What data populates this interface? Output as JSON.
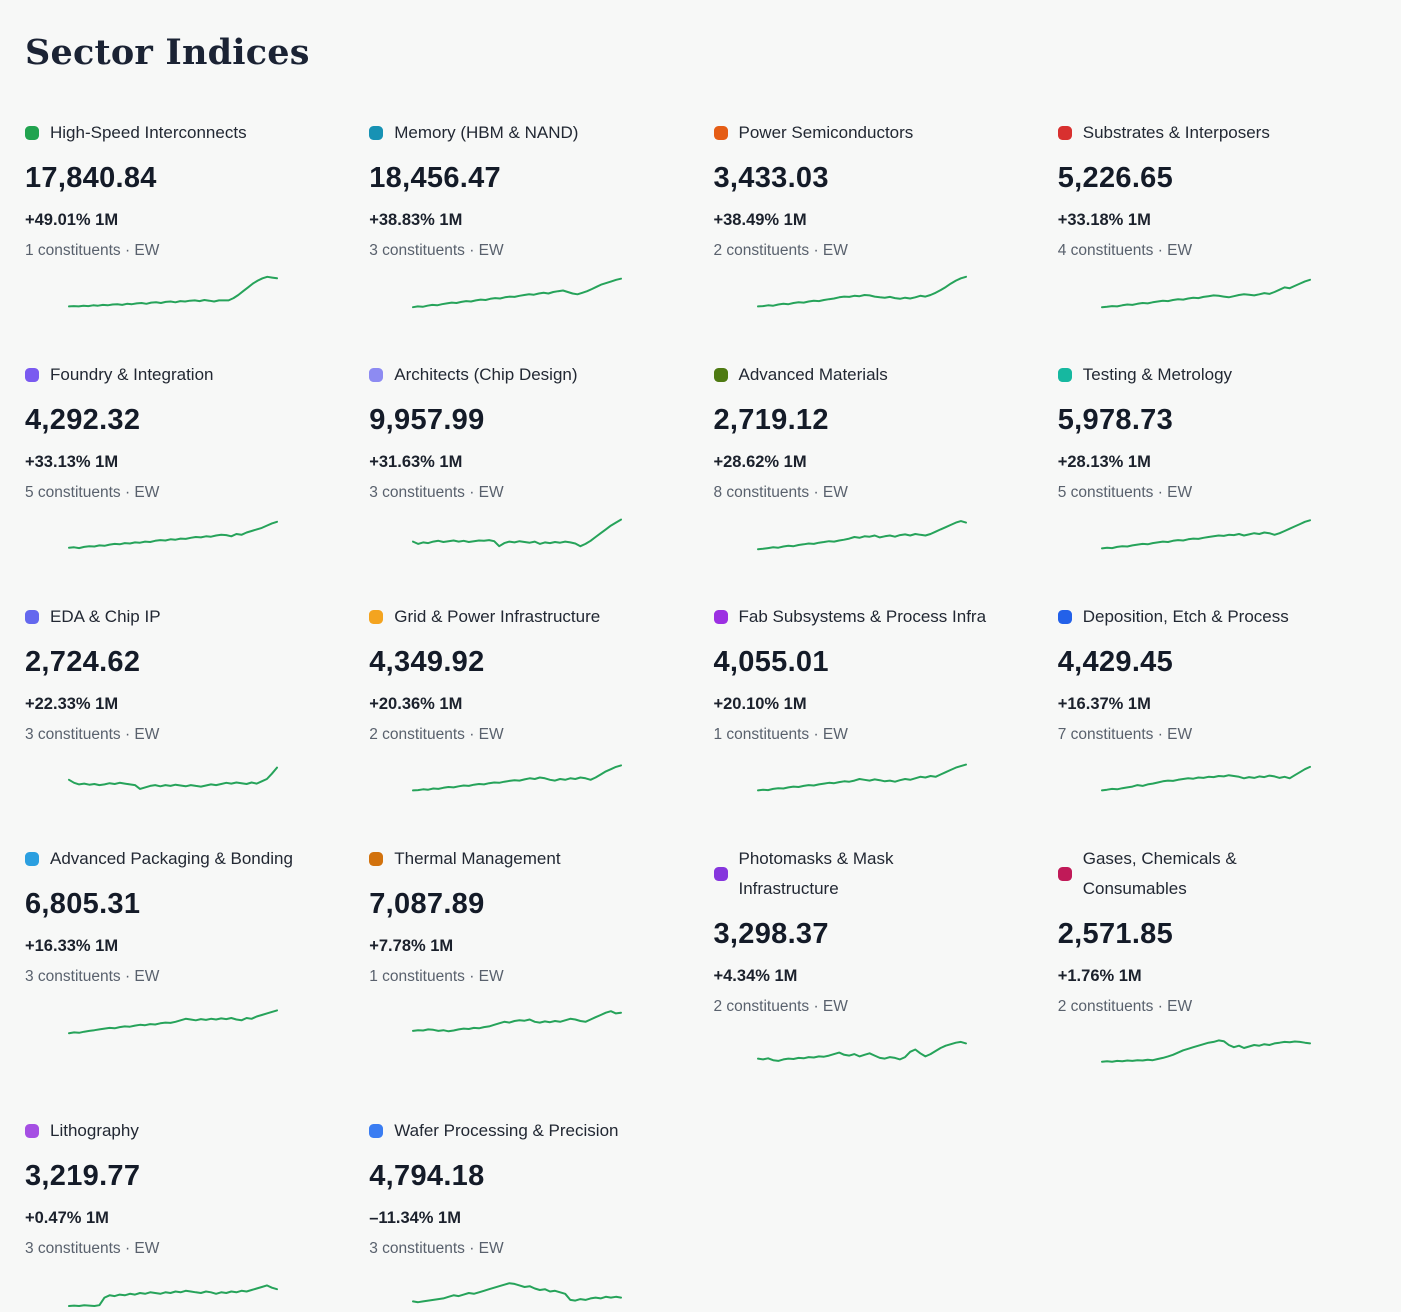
{
  "page": {
    "title": "Sector Indices",
    "background_color": "#f7f8f7",
    "sparkline_color": "#26a35a"
  },
  "cards": [
    {
      "name": "High-Speed Interconnects",
      "dot_color": "#21a34f",
      "value": "17,840.84",
      "change": "+49.01% 1M",
      "constituents": "1 constituents · EW",
      "spark": [
        12,
        13,
        12,
        14,
        13,
        15,
        14,
        16,
        15,
        17,
        18,
        16,
        19,
        18,
        20,
        21,
        19,
        22,
        23,
        21,
        24,
        25,
        23,
        26,
        25,
        27,
        28,
        26,
        29,
        27,
        25,
        28,
        28,
        28,
        34,
        42,
        52,
        62,
        72,
        80,
        86,
        90,
        88,
        86
      ]
    },
    {
      "name": "Memory (HBM & NAND)",
      "dot_color": "#1792b4",
      "value": "18,456.47",
      "change": "+38.83% 1M",
      "constituents": "3 constituents · EW",
      "spark": [
        10,
        12,
        11,
        14,
        16,
        15,
        18,
        20,
        22,
        21,
        24,
        26,
        25,
        28,
        30,
        29,
        32,
        34,
        33,
        36,
        38,
        37,
        40,
        42,
        44,
        43,
        46,
        48,
        46,
        50,
        52,
        54,
        50,
        46,
        44,
        48,
        52,
        58,
        64,
        70,
        74,
        78,
        82,
        85
      ]
    },
    {
      "name": "Power Semiconductors",
      "dot_color": "#e55d15",
      "value": "3,433.03",
      "change": "+38.49% 1M",
      "constituents": "2 constituents · EW",
      "spark": [
        12,
        13,
        15,
        14,
        17,
        19,
        18,
        21,
        23,
        22,
        25,
        27,
        26,
        29,
        31,
        33,
        36,
        38,
        37,
        40,
        39,
        42,
        41,
        38,
        36,
        35,
        37,
        34,
        32,
        35,
        33,
        36,
        40,
        38,
        42,
        48,
        55,
        63,
        72,
        80,
        86,
        90
      ]
    },
    {
      "name": "Substrates & Interposers",
      "dot_color": "#d8302f",
      "value": "5,226.65",
      "change": "+33.18% 1M",
      "constituents": "4 constituents · EW",
      "spark": [
        10,
        11,
        13,
        12,
        15,
        17,
        16,
        19,
        21,
        20,
        23,
        25,
        27,
        26,
        29,
        31,
        30,
        33,
        35,
        34,
        37,
        39,
        41,
        40,
        38,
        36,
        39,
        42,
        44,
        43,
        41,
        44,
        47,
        45,
        50,
        56,
        62,
        60,
        66,
        72,
        78,
        82
      ]
    },
    {
      "name": "Foundry & Integration",
      "dot_color": "#7a5af0",
      "value": "4,292.32",
      "change": "+33.13% 1M",
      "constituents": "5 constituents · EW",
      "spark": [
        14,
        15,
        13,
        16,
        18,
        17,
        20,
        19,
        22,
        24,
        23,
        26,
        25,
        28,
        27,
        30,
        29,
        32,
        34,
        33,
        36,
        35,
        38,
        37,
        40,
        42,
        41,
        44,
        43,
        46,
        48,
        47,
        44,
        50,
        48,
        54,
        58,
        62,
        66,
        72,
        78,
        82
      ]
    },
    {
      "name": "Architects (Chip Design)",
      "dot_color": "#8d8bf2",
      "value": "9,957.99",
      "change": "+31.63% 1M",
      "constituents": "3 constituents · EW",
      "spark": [
        30,
        24,
        28,
        26,
        30,
        32,
        29,
        31,
        33,
        30,
        32,
        29,
        31,
        33,
        32,
        34,
        31,
        18,
        26,
        30,
        28,
        31,
        29,
        27,
        30,
        24,
        28,
        26,
        29,
        27,
        30,
        28,
        25,
        18,
        24,
        32,
        42,
        52,
        62,
        72,
        80,
        88
      ]
    },
    {
      "name": "Advanced Materials",
      "dot_color": "#4e7a12",
      "value": "2,719.12",
      "change": "+28.62% 1M",
      "constituents": "8 constituents · EW",
      "spark": [
        10,
        11,
        13,
        15,
        14,
        17,
        19,
        18,
        21,
        23,
        25,
        24,
        27,
        29,
        31,
        30,
        33,
        35,
        38,
        42,
        40,
        44,
        43,
        46,
        41,
        44,
        46,
        43,
        47,
        49,
        46,
        50,
        48,
        46,
        50,
        56,
        62,
        68,
        74,
        80,
        84,
        80
      ]
    },
    {
      "name": "Testing & Metrology",
      "dot_color": "#16b8a0",
      "value": "5,978.73",
      "change": "+28.13% 1M",
      "constituents": "5 constituents · EW",
      "spark": [
        12,
        14,
        13,
        16,
        18,
        17,
        20,
        22,
        24,
        23,
        26,
        28,
        30,
        29,
        32,
        34,
        33,
        36,
        38,
        37,
        40,
        42,
        44,
        46,
        45,
        48,
        47,
        50,
        46,
        49,
        52,
        50,
        54,
        52,
        48,
        52,
        58,
        64,
        70,
        76,
        82,
        86
      ]
    },
    {
      "name": "EDA & Chip IP",
      "dot_color": "#6468ee",
      "value": "2,724.62",
      "change": "+22.33% 1M",
      "constituents": "3 constituents · EW",
      "spark": [
        40,
        32,
        28,
        30,
        27,
        29,
        26,
        28,
        31,
        29,
        32,
        30,
        28,
        26,
        16,
        20,
        24,
        26,
        23,
        26,
        24,
        27,
        25,
        23,
        26,
        24,
        22,
        25,
        28,
        26,
        29,
        32,
        30,
        33,
        31,
        29,
        33,
        30,
        36,
        42,
        56,
        72
      ]
    },
    {
      "name": "Grid & Power Infrastructure",
      "dot_color": "#f4a41f",
      "value": "4,349.92",
      "change": "+20.36% 1M",
      "constituents": "2 constituents · EW",
      "spark": [
        12,
        13,
        15,
        14,
        17,
        16,
        19,
        21,
        20,
        23,
        25,
        24,
        27,
        29,
        28,
        31,
        33,
        32,
        35,
        37,
        39,
        38,
        41,
        44,
        42,
        46,
        44,
        40,
        38,
        42,
        40,
        44,
        42,
        46,
        44,
        40,
        46,
        54,
        62,
        68,
        74,
        78
      ]
    },
    {
      "name": "Fab Subsystems & Process Infra",
      "dot_color": "#9c30e2",
      "value": "4,055.01",
      "change": "+20.10% 1M",
      "constituents": "1 constituents · EW",
      "spark": [
        12,
        14,
        13,
        16,
        18,
        17,
        20,
        22,
        21,
        24,
        26,
        25,
        28,
        30,
        32,
        31,
        34,
        36,
        35,
        38,
        42,
        40,
        38,
        41,
        39,
        36,
        38,
        35,
        39,
        42,
        40,
        44,
        48,
        46,
        50,
        48,
        54,
        60,
        66,
        72,
        76,
        80
      ]
    },
    {
      "name": "Deposition, Etch & Process",
      "dot_color": "#2361e9",
      "value": "4,429.45",
      "change": "+16.37% 1M",
      "constituents": "7 constituents · EW",
      "spark": [
        12,
        14,
        16,
        15,
        18,
        20,
        22,
        26,
        24,
        28,
        30,
        33,
        36,
        38,
        37,
        40,
        42,
        44,
        43,
        46,
        45,
        48,
        47,
        50,
        49,
        52,
        50,
        48,
        44,
        47,
        45,
        49,
        47,
        51,
        49,
        45,
        48,
        44,
        52,
        60,
        68,
        74
      ]
    },
    {
      "name": "Advanced Packaging & Bonding",
      "dot_color": "#2b9fe0",
      "value": "6,805.31",
      "change": "+16.33% 1M",
      "constituents": "3 constituents · EW",
      "spark": [
        10,
        12,
        11,
        14,
        16,
        18,
        20,
        22,
        24,
        23,
        26,
        28,
        27,
        30,
        32,
        31,
        34,
        33,
        36,
        38,
        37,
        40,
        44,
        48,
        46,
        44,
        47,
        45,
        48,
        46,
        49,
        47,
        50,
        46,
        44,
        50,
        48,
        54,
        58,
        62,
        66,
        70
      ]
    },
    {
      "name": "Thermal Management",
      "dot_color": "#d2720d",
      "value": "7,087.89",
      "change": "+7.78% 1M",
      "constituents": "1 constituents · EW",
      "spark": [
        16,
        18,
        17,
        20,
        19,
        16,
        18,
        15,
        17,
        20,
        22,
        21,
        24,
        23,
        26,
        28,
        32,
        36,
        40,
        38,
        42,
        44,
        43,
        46,
        40,
        38,
        41,
        39,
        42,
        40,
        44,
        48,
        46,
        42,
        40,
        46,
        52,
        58,
        64,
        68,
        62,
        64
      ]
    },
    {
      "name": "Photomasks & Mask\nInfrastructure",
      "dot_color": "#8636dd",
      "value": "3,298.37",
      "change": "+4.34% 1M",
      "constituents": "2 constituents · EW",
      "spark": [
        22,
        20,
        23,
        18,
        16,
        20,
        22,
        21,
        24,
        23,
        26,
        25,
        28,
        27,
        30,
        34,
        38,
        32,
        30,
        34,
        28,
        32,
        36,
        30,
        24,
        22,
        26,
        24,
        20,
        26,
        40,
        46,
        36,
        28,
        34,
        42,
        50,
        56,
        60,
        64,
        66,
        62
      ]
    },
    {
      "name": "Gases, Chemicals &\nConsumables",
      "dot_color": "#c01a58",
      "value": "2,571.85",
      "change": "+1.76% 1M",
      "constituents": "2 constituents · EW",
      "spark": [
        14,
        15,
        14,
        16,
        15,
        17,
        16,
        18,
        17,
        19,
        18,
        21,
        24,
        28,
        32,
        38,
        44,
        48,
        52,
        56,
        60,
        64,
        66,
        70,
        68,
        58,
        52,
        56,
        50,
        54,
        58,
        56,
        60,
        58,
        62,
        64,
        66,
        65,
        67,
        66,
        64,
        62
      ]
    },
    {
      "name": "Lithography",
      "dot_color": "#a54fe3",
      "value": "3,219.77",
      "change": "+0.47% 1M",
      "constituents": "3 constituents · EW",
      "spark": [
        8,
        9,
        8,
        10,
        9,
        8,
        10,
        30,
        36,
        34,
        38,
        36,
        40,
        38,
        42,
        40,
        44,
        42,
        40,
        44,
        42,
        46,
        44,
        48,
        46,
        44,
        42,
        46,
        44,
        40,
        44,
        42,
        46,
        44,
        48,
        46,
        50,
        54,
        58,
        62,
        56,
        52
      ]
    },
    {
      "name": "Wafer Processing & Precision",
      "dot_color": "#3a7df2",
      "value": "4,794.18",
      "change": "–11.34% 1M",
      "constituents": "3 constituents · EW",
      "spark": [
        20,
        18,
        20,
        22,
        24,
        26,
        28,
        32,
        36,
        34,
        38,
        42,
        40,
        44,
        48,
        52,
        56,
        60,
        64,
        68,
        66,
        62,
        58,
        60,
        54,
        50,
        52,
        46,
        48,
        44,
        40,
        24,
        22,
        26,
        24,
        28,
        30,
        28,
        32,
        30,
        32,
        30
      ]
    }
  ]
}
